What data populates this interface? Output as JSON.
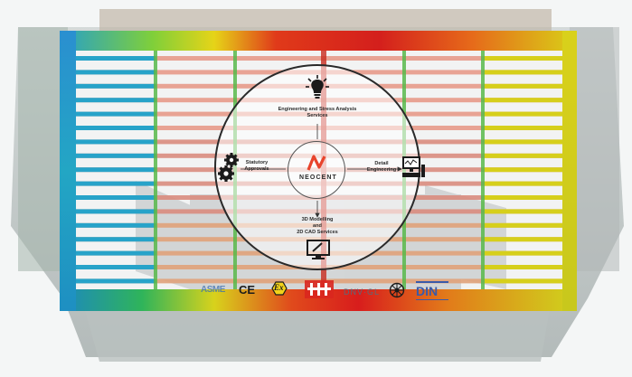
{
  "center": {
    "brand": "NEOCENT"
  },
  "nodes": {
    "top": {
      "line1": "Engineering and Stress Analysis",
      "line2": "Services",
      "icon": "lightbulb-icon"
    },
    "left": {
      "line1": "Statutory",
      "line2": "Approvals",
      "icon": "gears-icon"
    },
    "right": {
      "line1": "Detail",
      "line2": "Engineering",
      "icon": "computer-workstation-icon"
    },
    "bottom": {
      "line1": "3D Modelling",
      "line2": "and",
      "line3": "2D CAD Services",
      "icon": "drafting-monitor-icon"
    }
  },
  "certifications": {
    "asme": "ASME",
    "ce": "CE",
    "ex": "Ex",
    "dnv": "DNV·GL",
    "din": "DIN",
    "wheel": "wheel-emblem-icon",
    "pressure": "pressure-mark-icon"
  },
  "colors": {
    "accent": "#e8442c",
    "fea_blue": "#1a62c8",
    "fea_red": "#d42a1e",
    "fea_yellow": "#d9d21c",
    "fea_green": "#48b84a"
  }
}
